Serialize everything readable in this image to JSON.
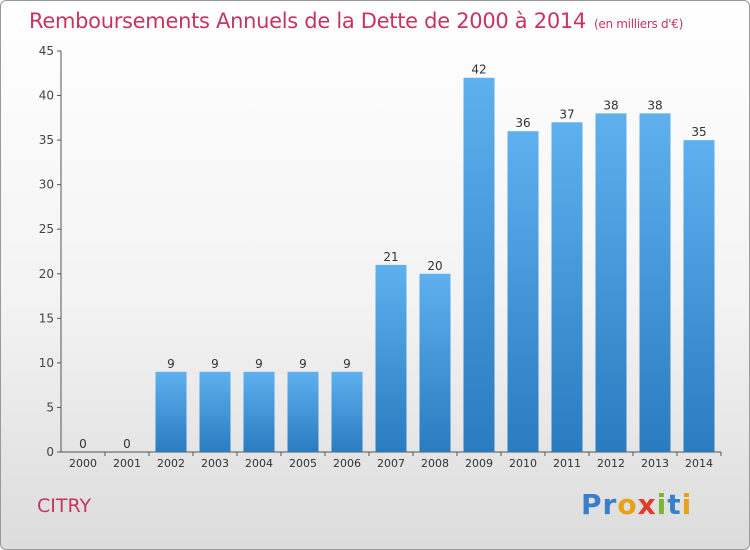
{
  "header": {
    "title": "Remboursements Annuels de la Dette de 2000 à 2014",
    "unit": "(en milliers d'€)"
  },
  "footer": {
    "commune": "CITRY",
    "brand": "Proxiti"
  },
  "colors": {
    "title": "#c8345e",
    "bar_light": "#5eb1ee",
    "bar_dark": "#2a7bc0",
    "brand_letters": [
      "#3a7fc8",
      "#3a7fc8",
      "#e8a21a",
      "#e23b2a",
      "#7ab534",
      "#3a7fc8",
      "#e8a21a"
    ]
  },
  "chart_data": {
    "type": "bar",
    "title": "Remboursements Annuels de la Dette de 2000 à 2014",
    "xlabel": "",
    "ylabel": "",
    "categories": [
      "2000",
      "2001",
      "2002",
      "2003",
      "2004",
      "2005",
      "2006",
      "2007",
      "2008",
      "2009",
      "2010",
      "2011",
      "2012",
      "2013",
      "2014"
    ],
    "values": [
      0,
      0,
      9,
      9,
      9,
      9,
      9,
      21,
      20,
      42,
      36,
      37,
      38,
      38,
      35
    ],
    "ylim": [
      0,
      45
    ],
    "yticks": [
      0,
      5,
      10,
      15,
      20,
      25,
      30,
      35,
      40,
      45
    ],
    "grid": false,
    "data_labels": true
  }
}
